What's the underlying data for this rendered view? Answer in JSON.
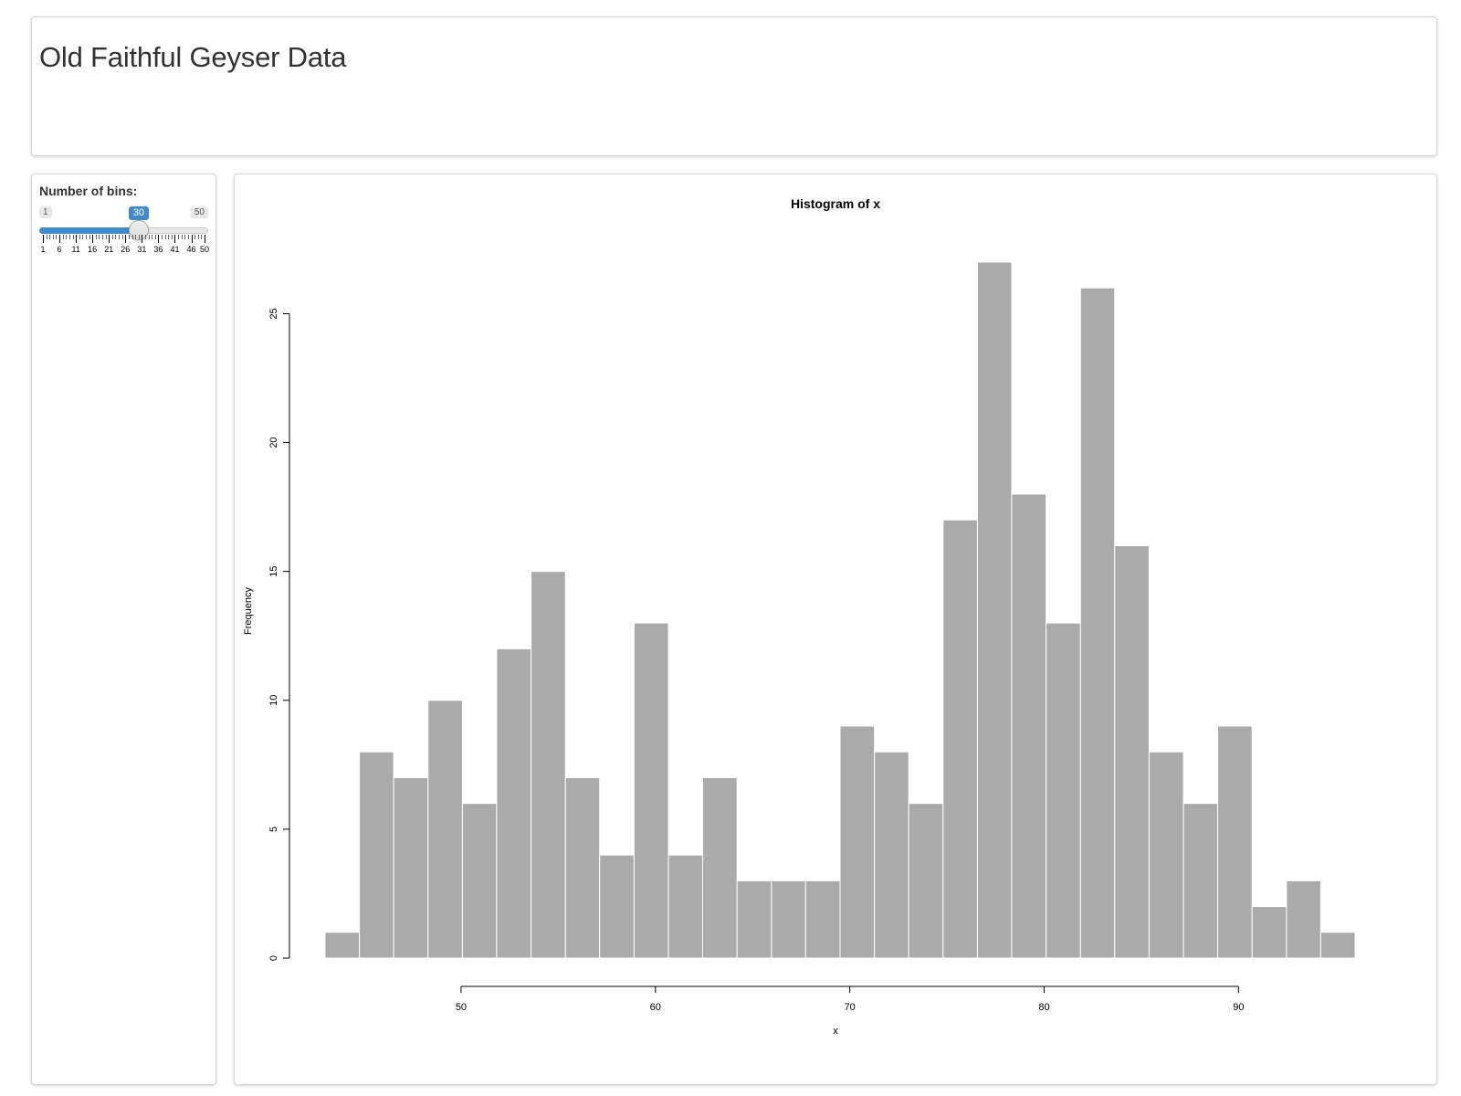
{
  "page": {
    "title": "Old Faithful Geyser Data"
  },
  "sidebar": {
    "input_label": "Number of bins:",
    "slider": {
      "min_label": "1",
      "max_label": "50",
      "value_label": "30",
      "min": 1,
      "max": 50,
      "value": 30,
      "grid_labels": [
        "1",
        "6",
        "11",
        "16",
        "21",
        "26",
        "31",
        "36",
        "41",
        "46",
        "50"
      ],
      "accent_color": "#428bca"
    }
  },
  "chart_data": {
    "type": "bar",
    "title": "Histogram of x",
    "xlabel": "x",
    "ylabel": "Frequency",
    "bin_edges": [
      43.0,
      44.77,
      46.53,
      48.3,
      50.07,
      51.83,
      53.6,
      55.37,
      57.13,
      58.9,
      60.67,
      62.43,
      64.2,
      65.97,
      67.73,
      69.5,
      71.27,
      73.03,
      74.8,
      76.57,
      78.33,
      80.1,
      81.87,
      83.63,
      85.4,
      87.17,
      88.93,
      90.7,
      92.47,
      94.23,
      96.0
    ],
    "values": [
      1,
      8,
      7,
      10,
      6,
      12,
      15,
      7,
      4,
      13,
      4,
      7,
      3,
      3,
      3,
      9,
      8,
      6,
      17,
      27,
      18,
      13,
      26,
      16,
      8,
      6,
      9,
      2,
      3,
      1
    ],
    "x_ticks": [
      50,
      60,
      70,
      80,
      90
    ],
    "y_ticks": [
      0,
      5,
      10,
      15,
      20,
      25
    ],
    "xlim": [
      40.7,
      98.3
    ],
    "ylim": [
      0,
      27
    ],
    "grid": false,
    "bar_color": "#aaaaaa",
    "bar_edge_color": "#ffffff"
  }
}
